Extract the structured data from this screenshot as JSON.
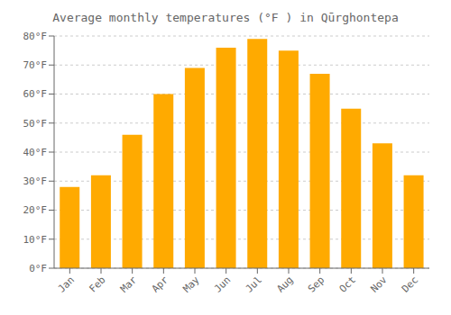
{
  "chart_data": {
    "type": "bar",
    "title": "Average monthly temperatures (°F ) in Qūrghontepa",
    "categories": [
      "Jan",
      "Feb",
      "Mar",
      "Apr",
      "May",
      "Jun",
      "Jul",
      "Aug",
      "Sep",
      "Oct",
      "Nov",
      "Dec"
    ],
    "values": [
      28,
      32,
      46,
      60,
      69,
      76,
      79,
      75,
      67,
      55,
      43,
      32
    ],
    "color": "#FFAA00",
    "ylim": [
      0,
      80
    ],
    "yticks": [
      {
        "value": 0,
        "label": "0°F"
      },
      {
        "value": 10,
        "label": "10°F"
      },
      {
        "value": 20,
        "label": "20°F"
      },
      {
        "value": 30,
        "label": "30°F"
      },
      {
        "value": 40,
        "label": "40°F"
      },
      {
        "value": 50,
        "label": "50°F"
      },
      {
        "value": 60,
        "label": "60°F"
      },
      {
        "value": 70,
        "label": "70°F"
      },
      {
        "value": 80,
        "label": "80°F"
      }
    ],
    "grid": true
  }
}
